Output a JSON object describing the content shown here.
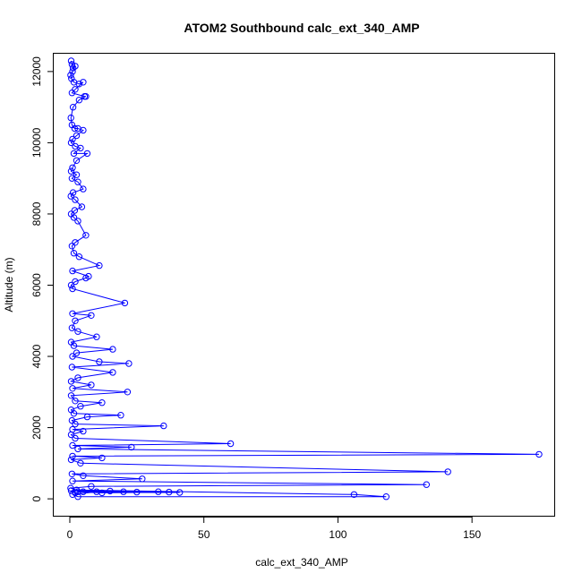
{
  "chart_data": {
    "type": "line",
    "title": "ATOM2 Southbound calc_ext_340_AMP",
    "xlabel": "calc_ext_340_AMP",
    "ylabel": "Altitude (m)",
    "xlim": [
      -6,
      181
    ],
    "ylim": [
      -500,
      12500
    ],
    "x_ticks": [
      0,
      50,
      100,
      150
    ],
    "y_ticks": [
      0,
      2000,
      4000,
      6000,
      8000,
      10000,
      12000
    ],
    "x_tick_labels": [
      "0",
      "50",
      "100",
      "150"
    ],
    "y_tick_labels": [
      "0",
      "2000",
      "4000",
      "6000",
      "8000",
      "10000",
      "12000"
    ],
    "grid": false,
    "legend": "none",
    "series_color": "#0000ff",
    "marker": "open-circle",
    "series": [
      {
        "values": [
          [
            0.5,
            12300
          ],
          [
            0.8,
            12200
          ],
          [
            1.2,
            12100
          ],
          [
            2.0,
            12150
          ],
          [
            1.0,
            12000
          ],
          [
            0.3,
            11900
          ],
          [
            0.6,
            11800
          ],
          [
            1.5,
            11700
          ],
          [
            3.5,
            11650
          ],
          [
            5.0,
            11700
          ],
          [
            2.0,
            11500
          ],
          [
            0.8,
            11400
          ],
          [
            5.5,
            11300
          ],
          [
            6.0,
            11300
          ],
          [
            3.5,
            11200
          ],
          [
            1.2,
            11000
          ],
          [
            0.4,
            10700
          ],
          [
            0.8,
            10500
          ],
          [
            1.8,
            10400
          ],
          [
            3.0,
            10400
          ],
          [
            5.0,
            10350
          ],
          [
            2.5,
            10200
          ],
          [
            1.0,
            10100
          ],
          [
            0.5,
            10000
          ],
          [
            2.0,
            9900
          ],
          [
            4.0,
            9850
          ],
          [
            1.5,
            9700
          ],
          [
            6.5,
            9700
          ],
          [
            2.5,
            9500
          ],
          [
            1.0,
            9300
          ],
          [
            0.5,
            9200
          ],
          [
            2.5,
            9100
          ],
          [
            0.8,
            9000
          ],
          [
            3.0,
            8900
          ],
          [
            5.0,
            8700
          ],
          [
            1.2,
            8600
          ],
          [
            0.4,
            8500
          ],
          [
            2.0,
            8400
          ],
          [
            4.5,
            8200
          ],
          [
            1.8,
            8100
          ],
          [
            0.5,
            8000
          ],
          [
            1.5,
            7900
          ],
          [
            3.0,
            7800
          ],
          [
            6.0,
            7400
          ],
          [
            2.0,
            7200
          ],
          [
            0.8,
            7100
          ],
          [
            1.5,
            6900
          ],
          [
            3.5,
            6800
          ],
          [
            11.0,
            6550
          ],
          [
            1.0,
            6400
          ],
          [
            7.0,
            6250
          ],
          [
            6.0,
            6200
          ],
          [
            2.0,
            6100
          ],
          [
            0.5,
            6000
          ],
          [
            1.0,
            5900
          ],
          [
            20.5,
            5500
          ],
          [
            1.0,
            5200
          ],
          [
            8.0,
            5150
          ],
          [
            2.0,
            5000
          ],
          [
            0.8,
            4800
          ],
          [
            3.0,
            4700
          ],
          [
            10.0,
            4550
          ],
          [
            0.5,
            4400
          ],
          [
            1.5,
            4300
          ],
          [
            16.0,
            4200
          ],
          [
            2.5,
            4100
          ],
          [
            1.0,
            4000
          ],
          [
            11.0,
            3850
          ],
          [
            22.0,
            3800
          ],
          [
            0.8,
            3700
          ],
          [
            16.0,
            3550
          ],
          [
            3.0,
            3400
          ],
          [
            0.5,
            3300
          ],
          [
            8.0,
            3200
          ],
          [
            1.0,
            3100
          ],
          [
            21.5,
            3000
          ],
          [
            0.5,
            2900
          ],
          [
            2.0,
            2750
          ],
          [
            12.0,
            2700
          ],
          [
            4.0,
            2600
          ],
          [
            0.5,
            2500
          ],
          [
            1.5,
            2400
          ],
          [
            19.0,
            2350
          ],
          [
            6.5,
            2300
          ],
          [
            0.8,
            2200
          ],
          [
            2.0,
            2100
          ],
          [
            35.0,
            2050
          ],
          [
            1.0,
            1950
          ],
          [
            5.0,
            1900
          ],
          [
            0.5,
            1800
          ],
          [
            2.0,
            1700
          ],
          [
            60.0,
            1550
          ],
          [
            1.0,
            1500
          ],
          [
            23.0,
            1450
          ],
          [
            3.0,
            1400
          ],
          [
            175.0,
            1250
          ],
          [
            1.0,
            1200
          ],
          [
            12.0,
            1150
          ],
          [
            0.5,
            1100
          ],
          [
            4.0,
            1000
          ],
          [
            141.0,
            760
          ],
          [
            0.8,
            700
          ],
          [
            5.0,
            650
          ],
          [
            27.0,
            560
          ],
          [
            1.0,
            500
          ],
          [
            133.0,
            400
          ],
          [
            8.0,
            350
          ],
          [
            0.3,
            300
          ],
          [
            2.5,
            250
          ],
          [
            106.0,
            120
          ],
          [
            118.0,
            60
          ],
          [
            3.0,
            60
          ],
          [
            1.0,
            120
          ],
          [
            10.0,
            200
          ],
          [
            25.0,
            190
          ],
          [
            41.0,
            180
          ],
          [
            33.0,
            200
          ],
          [
            15.0,
            220
          ],
          [
            5.0,
            200
          ],
          [
            2.0,
            170
          ],
          [
            0.5,
            230
          ],
          [
            20.0,
            200
          ],
          [
            37.0,
            190
          ],
          [
            12.0,
            170
          ],
          [
            3.0,
            200
          ]
        ]
      }
    ]
  }
}
